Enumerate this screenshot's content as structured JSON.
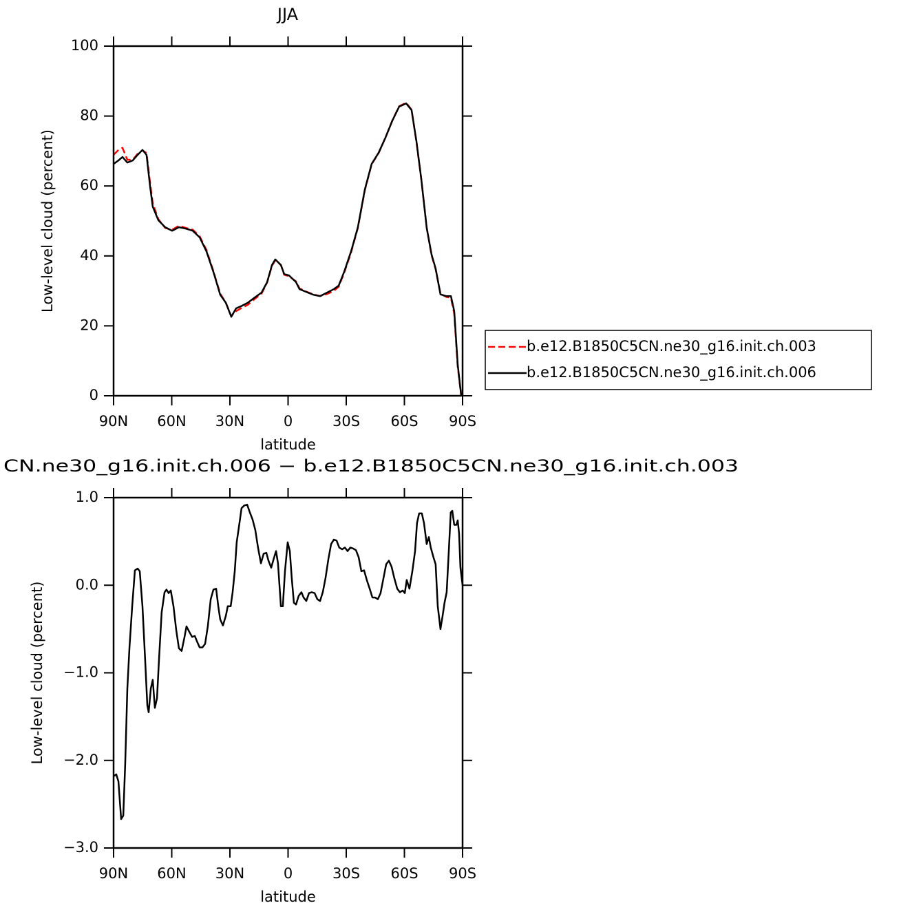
{
  "chart_data": [
    {
      "type": "line",
      "title": "JJA",
      "xlabel": "latitude",
      "ylabel": "Low-level cloud (percent)",
      "xlim": [
        90,
        -90
      ],
      "ylim": [
        0,
        100
      ],
      "xticks": [
        {
          "value": 90,
          "label": "90N"
        },
        {
          "value": 60,
          "label": "60N"
        },
        {
          "value": 30,
          "label": "30N"
        },
        0,
        {
          "value": -30,
          "label": "30S"
        },
        {
          "value": -60,
          "label": "60S"
        },
        {
          "value": -90,
          "label": "90S"
        }
      ],
      "yticks": [
        0,
        20,
        40,
        60,
        80,
        100
      ],
      "legend": "right",
      "x": [
        90,
        87.5,
        85.4,
        82.9,
        80.1,
        77.6,
        75.1,
        73.0,
        71.2,
        69.8,
        66.9,
        63.4,
        59.8,
        56.3,
        52.7,
        49.2,
        45.6,
        42.1,
        38.5,
        35.0,
        32.1,
        29.3,
        26.8,
        24.3,
        20.8,
        17.2,
        13.7,
        10.8,
        8.3,
        6.6,
        3.7,
        2.0,
        -0.5,
        -4.1,
        -5.9,
        -9.4,
        -13.0,
        -16.5,
        -20.1,
        -23.6,
        -26.1,
        -28.9,
        -32.5,
        -36.0,
        -39.6,
        -43.1,
        -46.7,
        -50.2,
        -53.8,
        -57.3,
        -60.9,
        -63.7,
        -66.2,
        -68.7,
        -71.5,
        -74.0,
        -76.1,
        -78.6,
        -81.5,
        -84.0,
        -85.7,
        -87.5,
        -89.3
      ],
      "series": [
        {
          "name": "b.e12.B1850C5CN.ne30_g16.init.ch.003",
          "color": "#ff0000",
          "dash": "dashed",
          "values": [
            68.9,
            70.3,
            70.9,
            67.5,
            67.5,
            69.2,
            70.2,
            69.4,
            61.0,
            55.0,
            50.5,
            48.0,
            47.5,
            48.6,
            48.0,
            47.5,
            45.6,
            41.7,
            35.6,
            29.2,
            26.6,
            22.8,
            24.2,
            25.0,
            26.0,
            27.7,
            29.2,
            32.4,
            37.2,
            38.7,
            37.4,
            34.6,
            34.2,
            32.7,
            30.7,
            29.8,
            29.0,
            28.5,
            29.1,
            30.0,
            31.2,
            35.1,
            41.0,
            48.0,
            58.8,
            66.2,
            69.4,
            73.8,
            78.8,
            82.8,
            83.8,
            81.8,
            72.6,
            62.0,
            48.1,
            40.2,
            36.2,
            29.2,
            28.3,
            28.0,
            23.5,
            8.2,
            0
          ]
        },
        {
          "name": "b.e12.B1850C5CN.ne30_g16.init.ch.006",
          "color": "#000000",
          "dash": "solid",
          "values": [
            66.3,
            67.3,
            68.3,
            66.7,
            67.3,
            68.9,
            70.3,
            68.9,
            60.0,
            54.1,
            50.2,
            48.2,
            47.2,
            48.2,
            47.8,
            47.2,
            45.3,
            41.3,
            35.4,
            28.9,
            26.6,
            22.6,
            25.0,
            25.6,
            26.6,
            28.1,
            29.5,
            32.5,
            37.4,
            39.0,
            37.4,
            34.8,
            34.4,
            32.5,
            30.5,
            29.7,
            28.9,
            28.5,
            29.5,
            30.5,
            31.5,
            35.4,
            41.3,
            48.2,
            59.0,
            66.3,
            69.5,
            73.8,
            78.7,
            82.7,
            83.6,
            81.7,
            72.8,
            62.0,
            48.0,
            40.4,
            36.4,
            29.0,
            28.5,
            28.5,
            24.2,
            8.9,
            0
          ]
        }
      ]
    },
    {
      "type": "line",
      "title": "CN.ne30_g16.init.ch.006 − b.e12.B1850C5CN.ne30_g16.init.ch.003",
      "xlabel": "latitude",
      "ylabel": "Low-level cloud (percent)",
      "xlim": [
        90,
        -90
      ],
      "ylim": [
        -3,
        1
      ],
      "xticks": [
        {
          "value": 90,
          "label": "90N"
        },
        {
          "value": 60,
          "label": "60N"
        },
        {
          "value": 30,
          "label": "30N"
        },
        0,
        {
          "value": -30,
          "label": "30S"
        },
        {
          "value": -60,
          "label": "60S"
        },
        {
          "value": -90,
          "label": "90S"
        }
      ],
      "yticks": [
        {
          "value": -3,
          "label": "−3.0"
        },
        {
          "value": -2,
          "label": "−2.0"
        },
        {
          "value": -1,
          "label": "−1.0"
        },
        {
          "value": 0,
          "label": "0.0"
        },
        {
          "value": 1,
          "label": "1.0"
        }
      ],
      "x": [
        90,
        88.6,
        87.5,
        86.1,
        85.0,
        84.0,
        82.9,
        81.8,
        80.4,
        79.0,
        77.6,
        76.5,
        75.1,
        73.7,
        72.6,
        71.9,
        70.8,
        69.8,
        68.7,
        67.6,
        66.6,
        65.2,
        63.7,
        62.7,
        61.6,
        60.5,
        59.1,
        57.7,
        56.3,
        54.9,
        53.4,
        52.4,
        51.0,
        49.5,
        48.1,
        47.0,
        45.6,
        44.2,
        42.8,
        41.4,
        39.9,
        38.5,
        37.1,
        36.0,
        35.0,
        33.6,
        32.1,
        31.1,
        29.6,
        28.6,
        27.5,
        26.5,
        25.0,
        24.0,
        22.6,
        21.1,
        19.7,
        18.3,
        16.9,
        15.5,
        14.0,
        12.6,
        11.2,
        10.1,
        8.7,
        7.3,
        6.2,
        5.2,
        3.7,
        2.7,
        1.6,
        0.2,
        -0.9,
        -1.9,
        -3.0,
        -4.1,
        -5.5,
        -6.9,
        -8.0,
        -9.4,
        -10.8,
        -12.2,
        -13.7,
        -15.1,
        -16.5,
        -17.9,
        -19.3,
        -20.8,
        -22.2,
        -23.6,
        -25.0,
        -26.4,
        -27.9,
        -29.3,
        -30.7,
        -32.1,
        -33.5,
        -35.0,
        -36.4,
        -37.8,
        -39.2,
        -40.6,
        -42.1,
        -43.5,
        -44.9,
        -46.3,
        -47.7,
        -49.2,
        -50.6,
        -52.0,
        -53.4,
        -54.8,
        -56.3,
        -57.7,
        -59.1,
        -60.2,
        -61.2,
        -62.6,
        -64.1,
        -65.5,
        -66.5,
        -67.6,
        -69.0,
        -70.1,
        -71.5,
        -72.6,
        -73.6,
        -75.1,
        -76.1,
        -77.2,
        -78.6,
        -79.7,
        -80.7,
        -81.8,
        -82.9,
        -83.9,
        -84.7,
        -85.7,
        -86.8,
        -87.5,
        -88.2,
        -88.9,
        -90
      ],
      "series": [
        {
          "color": "#000000",
          "dash": "solid",
          "values": [
            -2.18,
            -2.16,
            -2.24,
            -2.67,
            -2.63,
            -2.04,
            -1.18,
            -0.71,
            -0.24,
            0.17,
            0.19,
            0.16,
            -0.24,
            -0.86,
            -1.37,
            -1.45,
            -1.18,
            -1.08,
            -1.4,
            -1.29,
            -0.86,
            -0.31,
            -0.08,
            -0.05,
            -0.09,
            -0.06,
            -0.24,
            -0.51,
            -0.72,
            -0.75,
            -0.59,
            -0.47,
            -0.53,
            -0.59,
            -0.58,
            -0.64,
            -0.71,
            -0.71,
            -0.67,
            -0.47,
            -0.16,
            -0.05,
            -0.04,
            -0.24,
            -0.39,
            -0.46,
            -0.35,
            -0.24,
            -0.24,
            -0.08,
            0.16,
            0.49,
            0.72,
            0.88,
            0.91,
            0.92,
            0.83,
            0.75,
            0.63,
            0.43,
            0.25,
            0.36,
            0.37,
            0.28,
            0.2,
            0.31,
            0.39,
            0.25,
            -0.24,
            -0.24,
            0.16,
            0.49,
            0.39,
            0.08,
            -0.2,
            -0.22,
            -0.12,
            -0.08,
            -0.14,
            -0.18,
            -0.09,
            -0.08,
            -0.09,
            -0.16,
            -0.18,
            -0.08,
            0.08,
            0.3,
            0.47,
            0.52,
            0.51,
            0.43,
            0.41,
            0.43,
            0.39,
            0.43,
            0.42,
            0.4,
            0.32,
            0.16,
            0.17,
            0.06,
            -0.04,
            -0.14,
            -0.14,
            -0.16,
            -0.09,
            0.08,
            0.24,
            0.28,
            0.21,
            0.08,
            -0.04,
            -0.08,
            -0.06,
            -0.09,
            0.06,
            -0.04,
            0.16,
            0.39,
            0.71,
            0.82,
            0.82,
            0.71,
            0.47,
            0.55,
            0.43,
            0.31,
            0.24,
            -0.24,
            -0.5,
            -0.35,
            -0.2,
            -0.08,
            0.39,
            0.83,
            0.85,
            0.69,
            0.69,
            0.74,
            0.59,
            0.2,
            0.0
          ]
        }
      ]
    }
  ]
}
